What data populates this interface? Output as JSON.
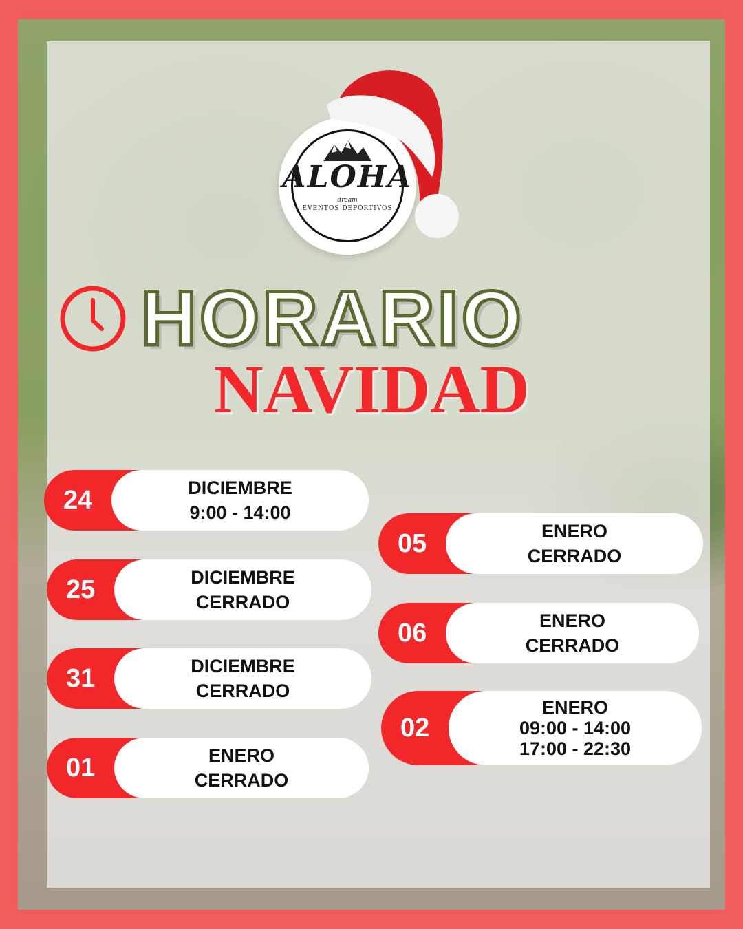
{
  "logo": {
    "name": "ALOHA",
    "tagline": "dream",
    "subtitle": "EVENTOS DEPORTIVOS"
  },
  "title": {
    "line1": "HORARIO",
    "line2": "NAVIDAD"
  },
  "colors": {
    "border": "#f25c5c",
    "accent_red": "#f2272a",
    "title_outline": "#5a6a30"
  },
  "icons": {
    "title": "clock-icon",
    "logo": "santa-hat-icon"
  },
  "schedule": {
    "left": [
      {
        "day": "24",
        "month": "DICIEMBRE",
        "hours": [
          "9:00 - 14:00"
        ]
      },
      {
        "day": "25",
        "month": "DICIEMBRE",
        "hours": [
          "CERRADO"
        ]
      },
      {
        "day": "31",
        "month": "DICIEMBRE",
        "hours": [
          "CERRADO"
        ]
      },
      {
        "day": "01",
        "month": "ENERO",
        "hours": [
          "CERRADO"
        ]
      }
    ],
    "right": [
      {
        "day": "05",
        "month": "ENERO",
        "hours": [
          "CERRADO"
        ]
      },
      {
        "day": "06",
        "month": "ENERO",
        "hours": [
          "CERRADO"
        ]
      },
      {
        "day": "02",
        "month": "ENERO",
        "hours": [
          "09:00 - 14:00",
          "17:00 - 22:30"
        ]
      }
    ]
  }
}
